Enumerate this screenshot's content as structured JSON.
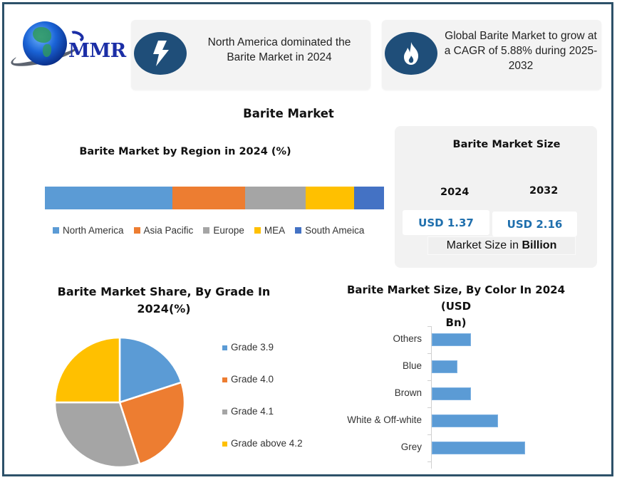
{
  "logo": {
    "text": "MMR",
    "icon": "globe-icon"
  },
  "info_cards": [
    {
      "icon": "lightning-bolt-icon",
      "text": "North America dominated the Barite Market in 2024"
    },
    {
      "icon": "flame-icon",
      "text": "Global Barite Market to grow at a CAGR of 5.88% during 2025-2032"
    }
  ],
  "main_title": "Barite Market",
  "market_size": {
    "title": "Barite Market Size",
    "years": [
      "2024",
      "2032"
    ],
    "values": [
      "USD 1.37",
      "USD 2.16"
    ],
    "unit_prefix": "Market Size in ",
    "unit_bold": "Billion"
  },
  "colors": {
    "frame": "#2d5169",
    "icon_bg": "#1f4e79",
    "value_text": "#1f6fad",
    "series": [
      "#5b9bd5",
      "#ed7d31",
      "#a5a5a5",
      "#ffc000",
      "#4472c4"
    ]
  },
  "chart_data": [
    {
      "type": "bar",
      "subtype": "stacked-horizontal-100",
      "title": "Barite Market by Region in 2024 (%)",
      "categories": [
        "North America",
        "Asia Pacific",
        "Europe",
        "MEA",
        "South Ameica"
      ],
      "values": [
        37.6,
        21.4,
        17.9,
        14.3,
        8.8
      ],
      "colors": [
        "#5b9bd5",
        "#ed7d31",
        "#a5a5a5",
        "#ffc000",
        "#4472c4"
      ],
      "legend_position": "bottom",
      "grid": false
    },
    {
      "type": "pie",
      "title": "Barite Market Share, By Grade In 2024(%)",
      "title_lines": [
        "Barite Market Share, By Grade In",
        "2024(%)"
      ],
      "categories": [
        "Grade 3.9",
        "Grade 4.0",
        "Grade 4.1",
        "Grade above 4.2"
      ],
      "values": [
        20,
        25,
        30,
        25
      ],
      "colors": [
        "#5b9bd5",
        "#ed7d31",
        "#a5a5a5",
        "#ffc000"
      ],
      "legend_position": "right"
    },
    {
      "type": "bar",
      "subtype": "horizontal",
      "title": "Barite Market Size, By Color In 2024 (USD Bn)",
      "title_lines": [
        "Barite Market Size, By Color In 2024 (USD",
        "Bn)"
      ],
      "categories": [
        "Others",
        "Blue",
        "Brown",
        "White & Off-white",
        "Grey"
      ],
      "values": [
        0.2,
        0.13,
        0.2,
        0.34,
        0.48
      ],
      "xlabel": "",
      "ylabel": "",
      "xlim": [
        0,
        0.7
      ],
      "color": "#5b9bd5",
      "grid": false
    }
  ]
}
